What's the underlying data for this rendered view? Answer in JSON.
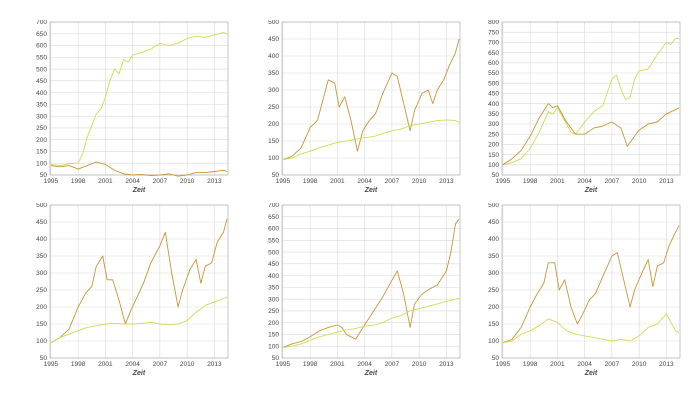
{
  "colors": {
    "orange": "#c8953a",
    "yellow": "#cfdc52"
  },
  "chart_data": [
    {
      "type": "line",
      "xlabel": "Zeit",
      "xticks": [
        1995,
        1998,
        2001,
        2004,
        2007,
        2010,
        2013
      ],
      "xlim": [
        1994.9,
        2014.5
      ],
      "yticks": [
        50,
        100,
        150,
        200,
        250,
        300,
        350,
        400,
        450,
        500,
        550,
        600,
        650,
        700
      ],
      "ylim": [
        50,
        700
      ],
      "series": [
        {
          "color": "yellow",
          "x": [
            1995,
            1996,
            1997,
            1998,
            1998.5,
            1999,
            1999.5,
            2000,
            2000.5,
            2001,
            2001.5,
            2002,
            2002.5,
            2003,
            2003.5,
            2004,
            2005,
            2006,
            2007,
            2008,
            2009,
            2010,
            2011,
            2012,
            2013,
            2014,
            2014.4
          ],
          "values": [
            95,
            90,
            98,
            100,
            140,
            210,
            260,
            310,
            330,
            380,
            450,
            500,
            480,
            540,
            530,
            560,
            570,
            585,
            610,
            600,
            610,
            630,
            640,
            635,
            645,
            655,
            650
          ]
        },
        {
          "color": "orange",
          "x": [
            1995,
            1996,
            1997,
            1998,
            1999,
            2000,
            2001,
            2002,
            2003,
            2004,
            2005,
            2006,
            2007,
            2008,
            2009,
            2010,
            2011,
            2012,
            2013,
            2014,
            2014.4
          ],
          "values": [
            90,
            85,
            90,
            75,
            90,
            105,
            95,
            70,
            55,
            50,
            52,
            48,
            50,
            55,
            45,
            50,
            60,
            60,
            65,
            70,
            65
          ]
        }
      ]
    },
    {
      "type": "line",
      "xlabel": "Zeit",
      "xticks": [
        1995,
        1998,
        2001,
        2004,
        2007,
        2010,
        2013
      ],
      "xlim": [
        1994.9,
        2014.5
      ],
      "yticks": [
        50,
        100,
        150,
        200,
        250,
        300,
        350,
        400,
        450,
        500
      ],
      "ylim": [
        50,
        500
      ],
      "series": [
        {
          "color": "orange",
          "x": [
            1995,
            1996,
            1997,
            1998,
            1998.8,
            1999.5,
            2000,
            2000.7,
            2001.2,
            2001.8,
            2002.5,
            2003.2,
            2003.8,
            2004.5,
            2005.2,
            2006,
            2007,
            2007.6,
            2008.3,
            2009,
            2009.5,
            2010.3,
            2011,
            2011.5,
            2012,
            2012.7,
            2013.3,
            2014,
            2014.4
          ],
          "values": [
            95,
            105,
            130,
            190,
            210,
            280,
            330,
            320,
            250,
            280,
            210,
            120,
            180,
            210,
            230,
            290,
            350,
            340,
            260,
            180,
            240,
            290,
            300,
            260,
            300,
            330,
            370,
            410,
            450
          ]
        },
        {
          "color": "yellow",
          "x": [
            1995,
            1996,
            1997,
            1998,
            1999,
            2000,
            2001,
            2002,
            2003,
            2004,
            2005,
            2006,
            2007,
            2008,
            2009,
            2010,
            2011,
            2012,
            2013,
            2014,
            2014.4
          ],
          "values": [
            95,
            100,
            112,
            120,
            130,
            138,
            146,
            150,
            155,
            160,
            163,
            172,
            180,
            185,
            195,
            200,
            205,
            210,
            212,
            210,
            205
          ]
        }
      ]
    },
    {
      "type": "line",
      "xlabel": "Zeit",
      "xticks": [
        1995,
        1998,
        2001,
        2004,
        2007,
        2010,
        2013
      ],
      "xlim": [
        1994.9,
        2014.5
      ],
      "yticks": [
        50,
        100,
        150,
        200,
        250,
        300,
        350,
        400,
        450,
        500,
        550,
        600,
        650,
        700,
        750,
        800
      ],
      "ylim": [
        50,
        800
      ],
      "series": [
        {
          "color": "yellow",
          "x": [
            1995,
            1996,
            1997,
            1998,
            1999,
            2000,
            2000.5,
            2001,
            2002,
            2002.5,
            2003,
            2004,
            2005,
            2006,
            2007,
            2007.5,
            2008,
            2008.5,
            2009,
            2009.5,
            2010,
            2011,
            2012,
            2013,
            2013.5,
            2014,
            2014.4
          ],
          "values": [
            100,
            110,
            130,
            180,
            260,
            360,
            350,
            380,
            300,
            260,
            250,
            310,
            360,
            390,
            520,
            540,
            470,
            420,
            430,
            520,
            560,
            570,
            640,
            700,
            690,
            720,
            720
          ]
        },
        {
          "color": "orange",
          "x": [
            1995,
            1996,
            1997,
            1998,
            1999,
            2000,
            2000.5,
            2001,
            2002,
            2003,
            2004,
            2005,
            2006,
            2007,
            2008,
            2008.7,
            2009.5,
            2010,
            2011,
            2012,
            2013,
            2014,
            2014.4
          ],
          "values": [
            100,
            130,
            170,
            240,
            330,
            400,
            380,
            390,
            310,
            250,
            250,
            280,
            290,
            310,
            280,
            190,
            240,
            270,
            300,
            310,
            350,
            370,
            380
          ]
        }
      ]
    },
    {
      "type": "line",
      "xlabel": "Zeit",
      "xticks": [
        1995,
        1998,
        2001,
        2004,
        2007,
        2010,
        2013
      ],
      "xlim": [
        1994.9,
        2014.5
      ],
      "yticks": [
        50,
        100,
        150,
        200,
        250,
        300,
        350,
        400,
        450,
        500
      ],
      "ylim": [
        50,
        500
      ],
      "series": [
        {
          "color": "orange",
          "x": [
            1995,
            1996,
            1997,
            1998,
            1998.8,
            1999.5,
            2000,
            2000.7,
            2001.2,
            2001.8,
            2002.5,
            2003.2,
            2003.8,
            2004.5,
            2005.2,
            2006,
            2007,
            2007.6,
            2008.3,
            2009,
            2009.5,
            2010.3,
            2011,
            2011.5,
            2012,
            2012.7,
            2013.3,
            2014,
            2014.4
          ],
          "values": [
            95,
            110,
            135,
            200,
            240,
            260,
            320,
            350,
            280,
            280,
            220,
            150,
            190,
            230,
            270,
            330,
            380,
            420,
            300,
            200,
            250,
            310,
            340,
            270,
            320,
            330,
            390,
            420,
            460
          ]
        },
        {
          "color": "yellow",
          "x": [
            1995,
            1996,
            1997,
            1998,
            1999,
            2000,
            2001,
            2002,
            2003,
            2004,
            2005,
            2006,
            2007,
            2008,
            2009,
            2010,
            2011,
            2012,
            2013,
            2014,
            2014.4
          ],
          "values": [
            95,
            110,
            120,
            130,
            140,
            145,
            150,
            152,
            150,
            150,
            152,
            155,
            150,
            148,
            150,
            160,
            185,
            205,
            215,
            225,
            228
          ]
        }
      ]
    },
    {
      "type": "line",
      "xlabel": "Zeit",
      "xticks": [
        1995,
        1998,
        2001,
        2004,
        2007,
        2010,
        2013
      ],
      "xlim": [
        1994.9,
        2014.5
      ],
      "yticks": [
        50,
        100,
        150,
        200,
        250,
        300,
        350,
        400,
        450,
        500,
        550,
        600,
        650,
        700
      ],
      "ylim": [
        50,
        700
      ],
      "series": [
        {
          "color": "orange",
          "x": [
            1995,
            1996,
            1997,
            1998,
            1999,
            2000,
            2001,
            2001.5,
            2002,
            2002.5,
            2003,
            2004,
            2005,
            2006,
            2007,
            2007.6,
            2008.3,
            2009,
            2009.5,
            2010.3,
            2011,
            2012,
            2013,
            2013.5,
            2014,
            2014.4
          ],
          "values": [
            95,
            110,
            120,
            140,
            165,
            180,
            190,
            180,
            150,
            140,
            130,
            190,
            250,
            310,
            380,
            420,
            320,
            180,
            280,
            320,
            340,
            360,
            420,
            500,
            620,
            640
          ]
        },
        {
          "color": "yellow",
          "x": [
            1995,
            1996,
            1997,
            1998,
            1999,
            2000,
            2001,
            2002,
            2003,
            2004,
            2005,
            2006,
            2007,
            2008,
            2009,
            2010,
            2011,
            2012,
            2013,
            2014,
            2014.4
          ],
          "values": [
            95,
            100,
            110,
            125,
            140,
            150,
            160,
            170,
            175,
            185,
            190,
            200,
            220,
            230,
            250,
            260,
            270,
            280,
            290,
            300,
            305
          ]
        }
      ]
    },
    {
      "type": "line",
      "xlabel": "Zeit",
      "xticks": [
        1995,
        1998,
        2001,
        2004,
        2007,
        2010,
        2013
      ],
      "xlim": [
        1994.9,
        2014.5
      ],
      "yticks": [
        50,
        100,
        150,
        200,
        250,
        300,
        350,
        400,
        450,
        500
      ],
      "ylim": [
        50,
        500
      ],
      "series": [
        {
          "color": "orange",
          "x": [
            1995,
            1996,
            1997,
            1998,
            1998.8,
            1999.5,
            2000,
            2000.7,
            2001.2,
            2001.8,
            2002.5,
            2003.2,
            2003.8,
            2004.5,
            2005.2,
            2006,
            2007,
            2007.6,
            2008.3,
            2009,
            2009.5,
            2010.3,
            2011,
            2011.5,
            2012,
            2012.7,
            2013.3,
            2014,
            2014.4
          ],
          "values": [
            95,
            105,
            140,
            200,
            240,
            270,
            330,
            330,
            250,
            280,
            200,
            150,
            180,
            220,
            240,
            290,
            350,
            360,
            280,
            200,
            250,
            300,
            340,
            260,
            320,
            330,
            380,
            420,
            440
          ]
        },
        {
          "color": "yellow",
          "x": [
            1995,
            1996,
            1997,
            1998,
            1999,
            2000,
            2001,
            2002,
            2003,
            2004,
            2005,
            2006,
            2007,
            2008,
            2009,
            2010,
            2011,
            2012,
            2013,
            2014,
            2014.4
          ],
          "values": [
            95,
            100,
            120,
            130,
            145,
            165,
            155,
            130,
            120,
            115,
            110,
            105,
            100,
            105,
            100,
            115,
            140,
            150,
            180,
            130,
            125
          ]
        }
      ]
    }
  ]
}
